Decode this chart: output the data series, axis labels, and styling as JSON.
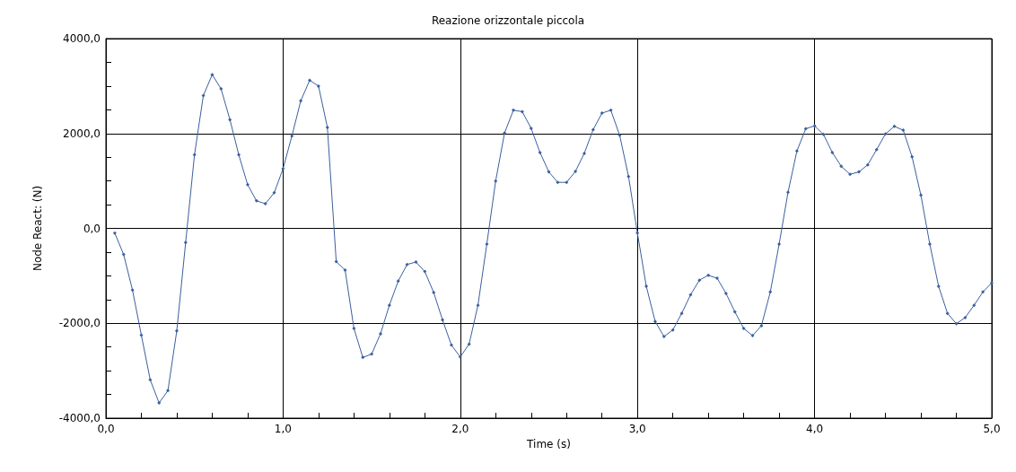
{
  "chart_data": {
    "type": "line",
    "title": "Reazione orizzontale piccola",
    "xlabel": "Time (s)",
    "ylabel": "Node React: (N)",
    "xlim": [
      0,
      5
    ],
    "ylim": [
      -4000,
      4000
    ],
    "xticks": [
      {
        "value": 0,
        "label": "0,0"
      },
      {
        "value": 0.2,
        "label": null
      },
      {
        "value": 0.4,
        "label": null
      },
      {
        "value": 0.6,
        "label": null
      },
      {
        "value": 0.8,
        "label": null
      },
      {
        "value": 1,
        "label": "1,0"
      },
      {
        "value": 1.2,
        "label": null
      },
      {
        "value": 1.4,
        "label": null
      },
      {
        "value": 1.6,
        "label": null
      },
      {
        "value": 1.8,
        "label": null
      },
      {
        "value": 2,
        "label": "2,0"
      },
      {
        "value": 2.2,
        "label": null
      },
      {
        "value": 2.4,
        "label": null
      },
      {
        "value": 2.6,
        "label": null
      },
      {
        "value": 2.8,
        "label": null
      },
      {
        "value": 3,
        "label": "3,0"
      },
      {
        "value": 3.2,
        "label": null
      },
      {
        "value": 3.4,
        "label": null
      },
      {
        "value": 3.6,
        "label": null
      },
      {
        "value": 3.8,
        "label": null
      },
      {
        "value": 4,
        "label": "4,0"
      },
      {
        "value": 4.2,
        "label": null
      },
      {
        "value": 4.4,
        "label": null
      },
      {
        "value": 4.6,
        "label": null
      },
      {
        "value": 4.8,
        "label": null
      },
      {
        "value": 5,
        "label": "5,0"
      }
    ],
    "yticks": [
      {
        "value": -4000,
        "label": "-4000,0"
      },
      {
        "value": -3500,
        "label": null
      },
      {
        "value": -3000,
        "label": null
      },
      {
        "value": -2500,
        "label": null
      },
      {
        "value": -2000,
        "label": "-2000,0"
      },
      {
        "value": -1500,
        "label": null
      },
      {
        "value": -1000,
        "label": null
      },
      {
        "value": -500,
        "label": null
      },
      {
        "value": 0,
        "label": "0,0"
      },
      {
        "value": 500,
        "label": null
      },
      {
        "value": 1000,
        "label": null
      },
      {
        "value": 1500,
        "label": null
      },
      {
        "value": 2000,
        "label": "2000,0"
      },
      {
        "value": 2500,
        "label": null
      },
      {
        "value": 3000,
        "label": null
      },
      {
        "value": 3500,
        "label": null
      },
      {
        "value": 4000,
        "label": "4000,0"
      }
    ],
    "grid": true,
    "marker": "diamond",
    "line_style": "solid",
    "x": [
      0.05,
      0.1,
      0.15,
      0.2,
      0.25,
      0.3,
      0.35,
      0.4,
      0.45,
      0.5,
      0.55,
      0.6,
      0.65,
      0.7,
      0.75,
      0.8,
      0.85,
      0.9,
      0.95,
      1.0,
      1.05,
      1.1,
      1.15,
      1.2,
      1.25,
      1.3,
      1.35,
      1.4,
      1.45,
      1.5,
      1.55,
      1.6,
      1.65,
      1.7,
      1.75,
      1.8,
      1.85,
      1.9,
      1.95,
      2.0,
      2.05,
      2.1,
      2.15,
      2.2,
      2.25,
      2.3,
      2.35,
      2.4,
      2.45,
      2.5,
      2.55,
      2.6,
      2.65,
      2.7,
      2.75,
      2.8,
      2.85,
      2.9,
      2.95,
      3.0,
      3.05,
      3.1,
      3.15,
      3.2,
      3.25,
      3.3,
      3.35,
      3.4,
      3.45,
      3.5,
      3.55,
      3.6,
      3.65,
      3.7,
      3.75,
      3.8,
      3.85,
      3.9,
      3.95,
      4.0,
      4.05,
      4.1,
      4.15,
      4.2,
      4.25,
      4.3,
      4.35,
      4.4,
      4.45,
      4.5,
      4.55,
      4.6,
      4.65,
      4.7,
      4.75,
      4.8,
      4.85,
      4.9,
      4.95,
      5.0
    ],
    "series": [
      {
        "color": "#3b5f9e",
        "values": [
          -100,
          -550,
          -1300,
          -2250,
          -3190,
          -3680,
          -3420,
          -2160,
          -300,
          1550,
          2800,
          3240,
          2940,
          2290,
          1550,
          920,
          580,
          520,
          750,
          1260,
          1950,
          2690,
          3120,
          3000,
          2130,
          -700,
          -880,
          -2110,
          -2720,
          -2650,
          -2220,
          -1620,
          -1110,
          -760,
          -710,
          -910,
          -1350,
          -1930,
          -2460,
          -2710,
          -2440,
          -1620,
          -330,
          1000,
          2010,
          2490,
          2460,
          2110,
          1600,
          1190,
          970,
          970,
          1200,
          1580,
          2080,
          2430,
          2490,
          1960,
          1090,
          -100,
          -1220,
          -1960,
          -2280,
          -2140,
          -1790,
          -1400,
          -1090,
          -990,
          -1050,
          -1370,
          -1760,
          -2110,
          -2260,
          -2050,
          -1340,
          -330,
          760,
          1630,
          2100,
          2160,
          1980,
          1600,
          1310,
          1140,
          1190,
          1340,
          1660,
          1990,
          2150,
          2070,
          1510,
          700,
          -330,
          -1220,
          -1790,
          -2010,
          -1880,
          -1620,
          -1340,
          -1150
        ]
      }
    ]
  }
}
